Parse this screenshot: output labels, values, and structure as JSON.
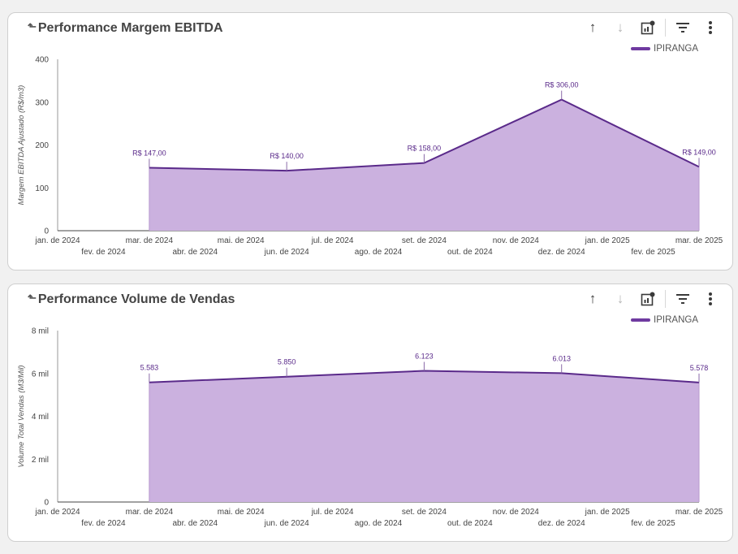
{
  "colors": {
    "line": "#5a2a8a",
    "fill": "#cbb1df",
    "axis": "#444444"
  },
  "cards": [
    {
      "title": "Performance Margem EBITDA",
      "back_icon": "back-arrow-icon",
      "legend": "IPIRANGA",
      "tools": [
        "arrow-up-icon",
        "arrow-down-icon",
        "chart-settings-icon",
        "filter-icon",
        "more-vert-icon"
      ]
    },
    {
      "title": "Performance Volume de Vendas",
      "back_icon": "back-arrow-icon",
      "legend": "IPIRANGA",
      "tools": [
        "arrow-up-icon",
        "arrow-down-icon",
        "chart-settings-icon",
        "filter-icon",
        "more-vert-icon"
      ]
    }
  ],
  "chart_data": [
    {
      "type": "area",
      "title": "Performance Margem EBITDA",
      "xlabel": "",
      "ylabel": "Margem EBITDA Ajustado (R$/m3)",
      "categories": [
        "jan. de 2024",
        "fev. de 2024",
        "mar. de 2024",
        "abr. de 2024",
        "mai. de 2024",
        "jun. de 2024",
        "jul. de 2024",
        "ago. de 2024",
        "set. de 2024",
        "out. de 2024",
        "nov. de 2024",
        "dez. de 2024",
        "jan. de 2025",
        "fev. de 2025",
        "mar. de 2025"
      ],
      "ylim": [
        0,
        400
      ],
      "yticks": [
        "0",
        "100",
        "200",
        "300",
        "400"
      ],
      "series": [
        {
          "name": "IPIRANGA",
          "points": [
            {
              "x": "mar. de 2024",
              "y": 147,
              "label": "R$ 147,00"
            },
            {
              "x": "jun. de 2024",
              "y": 140,
              "label": "R$ 140,00"
            },
            {
              "x": "set. de 2024",
              "y": 158,
              "label": "R$ 158,00"
            },
            {
              "x": "dez. de 2024",
              "y": 306,
              "label": "R$ 306,00"
            },
            {
              "x": "mar. de 2025",
              "y": 149,
              "label": "R$ 149,00"
            }
          ]
        }
      ],
      "legend": "top-right",
      "grid": false
    },
    {
      "type": "area",
      "title": "Performance Volume de Vendas",
      "xlabel": "",
      "ylabel": "Volume Total Vendas (M3/Mil)",
      "categories": [
        "jan. de 2024",
        "fev. de 2024",
        "mar. de 2024",
        "abr. de 2024",
        "mai. de 2024",
        "jun. de 2024",
        "jul. de 2024",
        "ago. de 2024",
        "set. de 2024",
        "out. de 2024",
        "nov. de 2024",
        "dez. de 2024",
        "jan. de 2025",
        "fev. de 2025",
        "mar. de 2025"
      ],
      "ylim": [
        0,
        8000
      ],
      "yticks": [
        "0",
        "2 mil",
        "4 mil",
        "6 mil",
        "8 mil"
      ],
      "series": [
        {
          "name": "IPIRANGA",
          "points": [
            {
              "x": "mar. de 2024",
              "y": 5583,
              "label": "5.583"
            },
            {
              "x": "jun. de 2024",
              "y": 5850,
              "label": "5.850"
            },
            {
              "x": "set. de 2024",
              "y": 6123,
              "label": "6.123"
            },
            {
              "x": "dez. de 2024",
              "y": 6013,
              "label": "6.013"
            },
            {
              "x": "mar. de 2025",
              "y": 5578,
              "label": "5.578"
            }
          ]
        }
      ],
      "legend": "top-right",
      "grid": false
    }
  ]
}
